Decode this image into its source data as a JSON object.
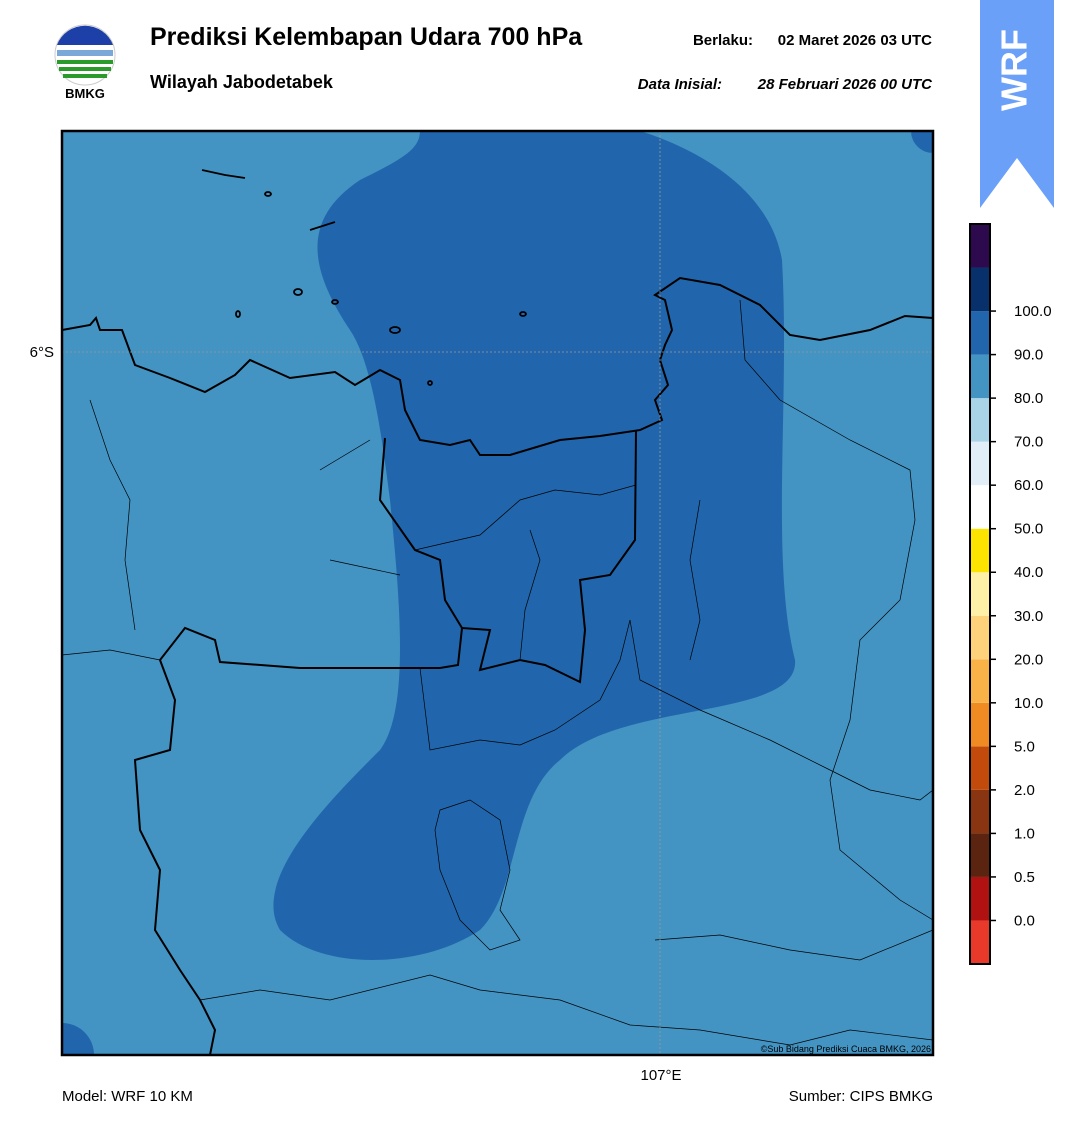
{
  "header": {
    "logo_text": "BMKG",
    "title": "Prediksi Kelembapan Udara 700 hPa",
    "subtitle": "Wilayah Jabodetabek",
    "valid_label": "Berlaku:",
    "valid_value": "02 Maret 2026 03 UTC",
    "init_label": "Data Inisial:",
    "init_value": "28 Februari 2026 00 UTC",
    "badge": "WRF"
  },
  "map": {
    "lat_label": "6°S",
    "lon_label": "107°E",
    "credit": "©Sub Bidang Prediksi Cuaca BMKG, 2026"
  },
  "colorbar": {
    "colors": [
      "#e8392b",
      "#b01212",
      "#5a2410",
      "#8a3511",
      "#c24b0c",
      "#f08a22",
      "#f9b248",
      "#fdd27a",
      "#fff0a8",
      "#fde400",
      "#ffffff",
      "#e2eef7",
      "#a9d3e7",
      "#4393c3",
      "#2166ac",
      "#08306b",
      "#2d0a4e"
    ],
    "ticks": [
      {
        "value": 0,
        "label": "0.0"
      },
      {
        "value": 0.5,
        "label": "0.5"
      },
      {
        "value": 1,
        "label": "1.0"
      },
      {
        "value": 2,
        "label": "2.0"
      },
      {
        "value": 5,
        "label": "5.0"
      },
      {
        "value": 10,
        "label": "10.0"
      },
      {
        "value": 20,
        "label": "20.0"
      },
      {
        "value": 30,
        "label": "30.0"
      },
      {
        "value": 40,
        "label": "40.0"
      },
      {
        "value": 50,
        "label": "50.0"
      },
      {
        "value": 60,
        "label": "60.0"
      },
      {
        "value": 70,
        "label": "70.0"
      },
      {
        "value": 80,
        "label": "80.0"
      },
      {
        "value": 90,
        "label": "90.0"
      },
      {
        "value": 100,
        "label": "100.0"
      }
    ]
  },
  "footer": {
    "model": "Model: WRF 10 KM",
    "source": "Sumber: CIPS BMKG"
  }
}
